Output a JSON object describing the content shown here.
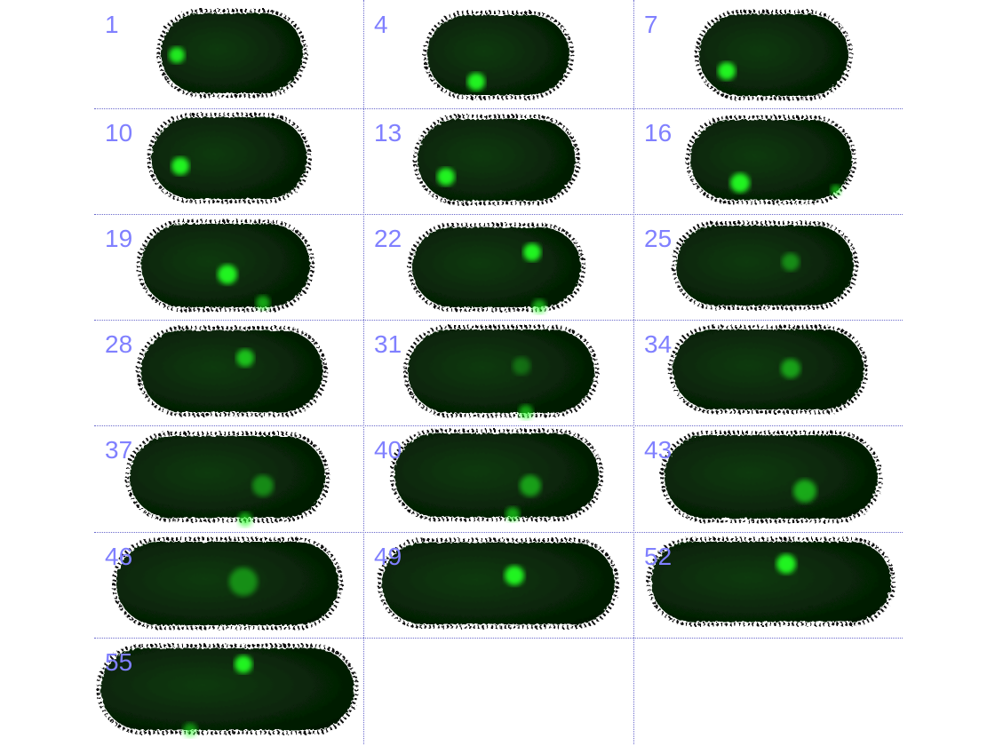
{
  "montage": {
    "colors": {
      "cell_body": "#0c3a0c",
      "cell_body_dark": "#041804",
      "spot": "#22ff22",
      "label": "#8080ff",
      "gridline": "#6a6acc"
    },
    "frames": [
      {
        "label": "1"
      },
      {
        "label": "4"
      },
      {
        "label": "7"
      },
      {
        "label": "10"
      },
      {
        "label": "13"
      },
      {
        "label": "16"
      },
      {
        "label": "19"
      },
      {
        "label": "22"
      },
      {
        "label": "25"
      },
      {
        "label": "28"
      },
      {
        "label": "31"
      },
      {
        "label": "34"
      },
      {
        "label": "37"
      },
      {
        "label": "40"
      },
      {
        "label": "43"
      },
      {
        "label": "46"
      },
      {
        "label": "49"
      },
      {
        "label": "52"
      },
      {
        "label": "55"
      }
    ]
  }
}
